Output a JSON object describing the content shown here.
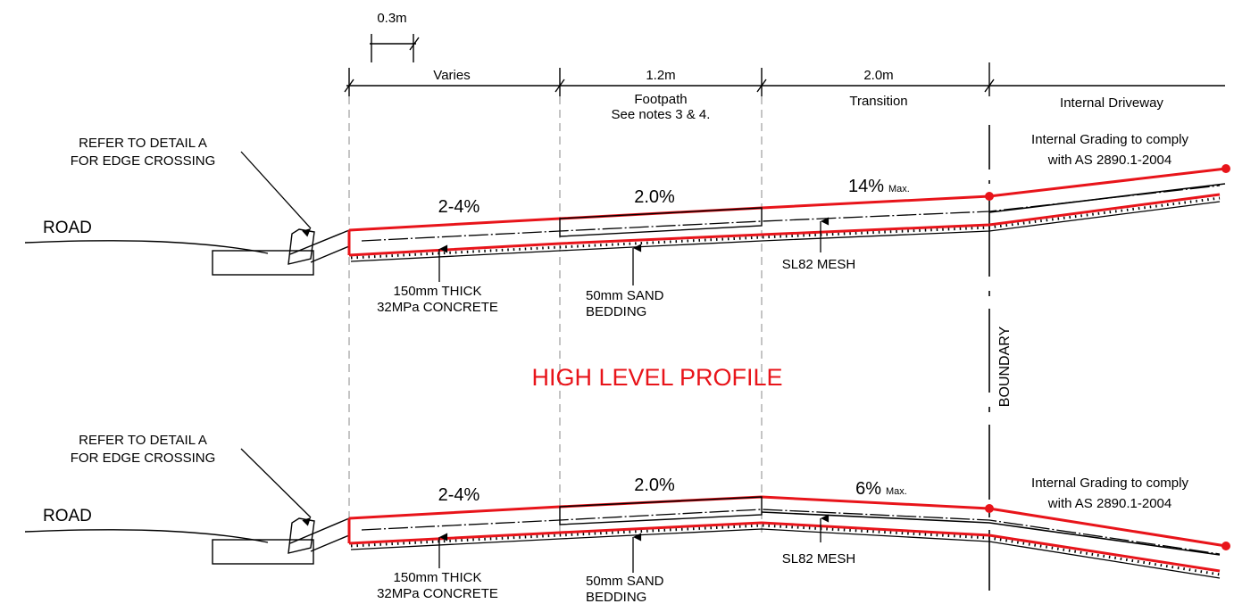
{
  "colors": {
    "profile_red": "#e8141a",
    "line_black": "#000000",
    "dash_grey": "#8a8a8a"
  },
  "dimensions": {
    "kerb_offset": "0.3m",
    "varies": "Varies",
    "footpath_width": "1.2m",
    "footpath_title": "Footpath",
    "footpath_note": "See notes 3 & 4.",
    "transition_width": "2.0m",
    "transition_title": "Transition",
    "driveway_title": "Internal Driveway"
  },
  "boundary_label": "BOUNDARY",
  "center_title": "HIGH LEVEL PROFILE",
  "profiles": [
    {
      "road_label": "ROAD",
      "edge_ref_line1": "REFER TO DETAIL A",
      "edge_ref_line2": "FOR EDGE CROSSING",
      "grade_verge": "2-4%",
      "grade_footpath": "2.0%",
      "grade_transition": "14%",
      "grade_transition_suffix": "Max.",
      "internal_grading_line1": "Internal Grading to comply",
      "internal_grading_line2": "with AS 2890.1-2004",
      "concrete_line1": "150mm THICK",
      "concrete_line2": "32MPa CONCRETE",
      "sand_line1": "50mm SAND",
      "sand_line2": "BEDDING",
      "mesh_label": "SL82 MESH"
    },
    {
      "road_label": "ROAD",
      "edge_ref_line1": "REFER TO DETAIL A",
      "edge_ref_line2": "FOR EDGE CROSSING",
      "grade_verge": "2-4%",
      "grade_footpath": "2.0%",
      "grade_transition": "6%",
      "grade_transition_suffix": "Max.",
      "internal_grading_line1": "Internal Grading to comply",
      "internal_grading_line2": "with AS 2890.1-2004",
      "concrete_line1": "150mm THICK",
      "concrete_line2": "32MPa CONCRETE",
      "sand_line1": "50mm SAND",
      "sand_line2": "BEDDING",
      "mesh_label": "SL82 MESH"
    }
  ]
}
